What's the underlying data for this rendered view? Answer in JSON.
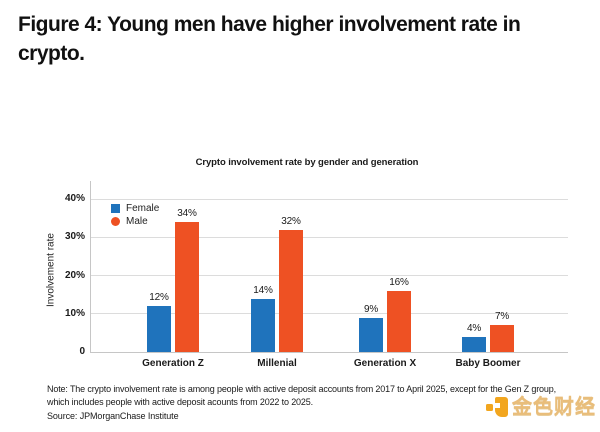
{
  "figure": {
    "title_line1": "Figure 4: Young men have higher involvement rate in",
    "title_line2": "crypto.",
    "note_line1": "Note: The crypto involvement rate is among people with active deposit accounts from 2017 to April 2025, except for the Gen Z group,",
    "note_line2": "which includes people with active deposit acounts from 2022 to 2025.",
    "source": "Source: JPMorganChase Institute"
  },
  "chart_data": {
    "type": "bar",
    "title": "Crypto involvement rate by gender and generation",
    "xlabel": "",
    "ylabel": "Involvement rate",
    "categories": [
      "Generation Z",
      "Millenial",
      "Generation X",
      "Baby Boomer"
    ],
    "series": [
      {
        "name": "Female",
        "color": "#1F73BC",
        "marker": "square",
        "values": [
          12,
          14,
          9,
          4
        ],
        "data_labels": [
          "12%",
          "14%",
          "9%",
          "4%"
        ]
      },
      {
        "name": "Male",
        "color": "#EE5123",
        "marker": "circle",
        "values": [
          34,
          32,
          16,
          7
        ],
        "data_labels": [
          "34%",
          "32%",
          "16%",
          "7%"
        ]
      }
    ],
    "y_ticks": [
      {
        "value": 40,
        "label": "40%"
      },
      {
        "value": 30,
        "label": "30%"
      },
      {
        "value": 20,
        "label": "20%"
      },
      {
        "value": 10,
        "label": "10%"
      },
      {
        "value": 0,
        "label": "0"
      }
    ],
    "ylim": [
      0,
      44.8
    ],
    "grid": true,
    "legend_position": "top-left-inside"
  },
  "colors": {
    "female_bar": "#1F73BC",
    "male_bar": "#EE5123",
    "gridline": "#DCDCDC",
    "axis": "#C6C6C6",
    "watermark_icon": "#F2A61F",
    "watermark_text": "#E9BD7A"
  },
  "watermark": {
    "text": "金色财经"
  }
}
